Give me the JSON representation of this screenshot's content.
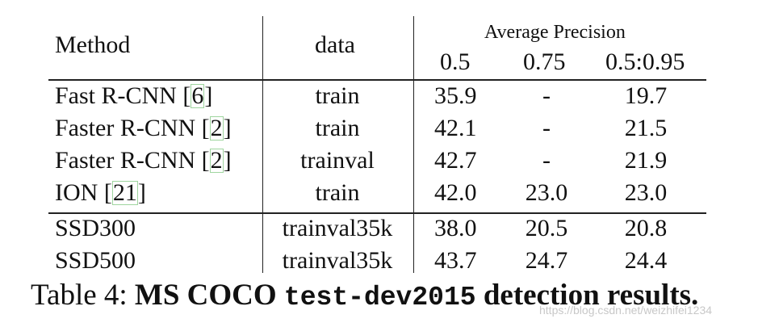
{
  "table": {
    "header": {
      "method": "Method",
      "data": "data",
      "group": "Average Precision",
      "ap": [
        "0.5",
        "0.75",
        "0.5:0.95"
      ]
    },
    "rows": [
      {
        "method": "Fast R-CNN [",
        "ref": "6",
        "suffix": "]",
        "data": "train",
        "ap50": "35.9",
        "ap75": "-",
        "ap": "19.7"
      },
      {
        "method": "Faster R-CNN [",
        "ref": "2",
        "suffix": "]",
        "data": "train",
        "ap50": "42.1",
        "ap75": "-",
        "ap": "21.5"
      },
      {
        "method": "Faster R-CNN [",
        "ref": "2",
        "suffix": "]",
        "data": "trainval",
        "ap50": "42.7",
        "ap75": "-",
        "ap": "21.9"
      },
      {
        "method": "ION [",
        "ref": "21",
        "suffix": "]",
        "data": "train",
        "ap50": "42.0",
        "ap75": "23.0",
        "ap": "23.0"
      },
      {
        "method": "SSD300",
        "ref": "",
        "suffix": "",
        "data": "trainval35k",
        "ap50": "38.0",
        "ap75": "20.5",
        "ap": "20.8"
      },
      {
        "method": "SSD500",
        "ref": "",
        "suffix": "",
        "data": "trainval35k",
        "ap50": "43.7",
        "ap75": "24.7",
        "ap": "24.4"
      }
    ]
  },
  "caption": {
    "label": "Table 4:",
    "bold1": "MS COCO",
    "mono": "test-dev2015",
    "bold2": "detection results."
  },
  "watermark": "https://blog.csdn.net/weizhifei1234"
}
